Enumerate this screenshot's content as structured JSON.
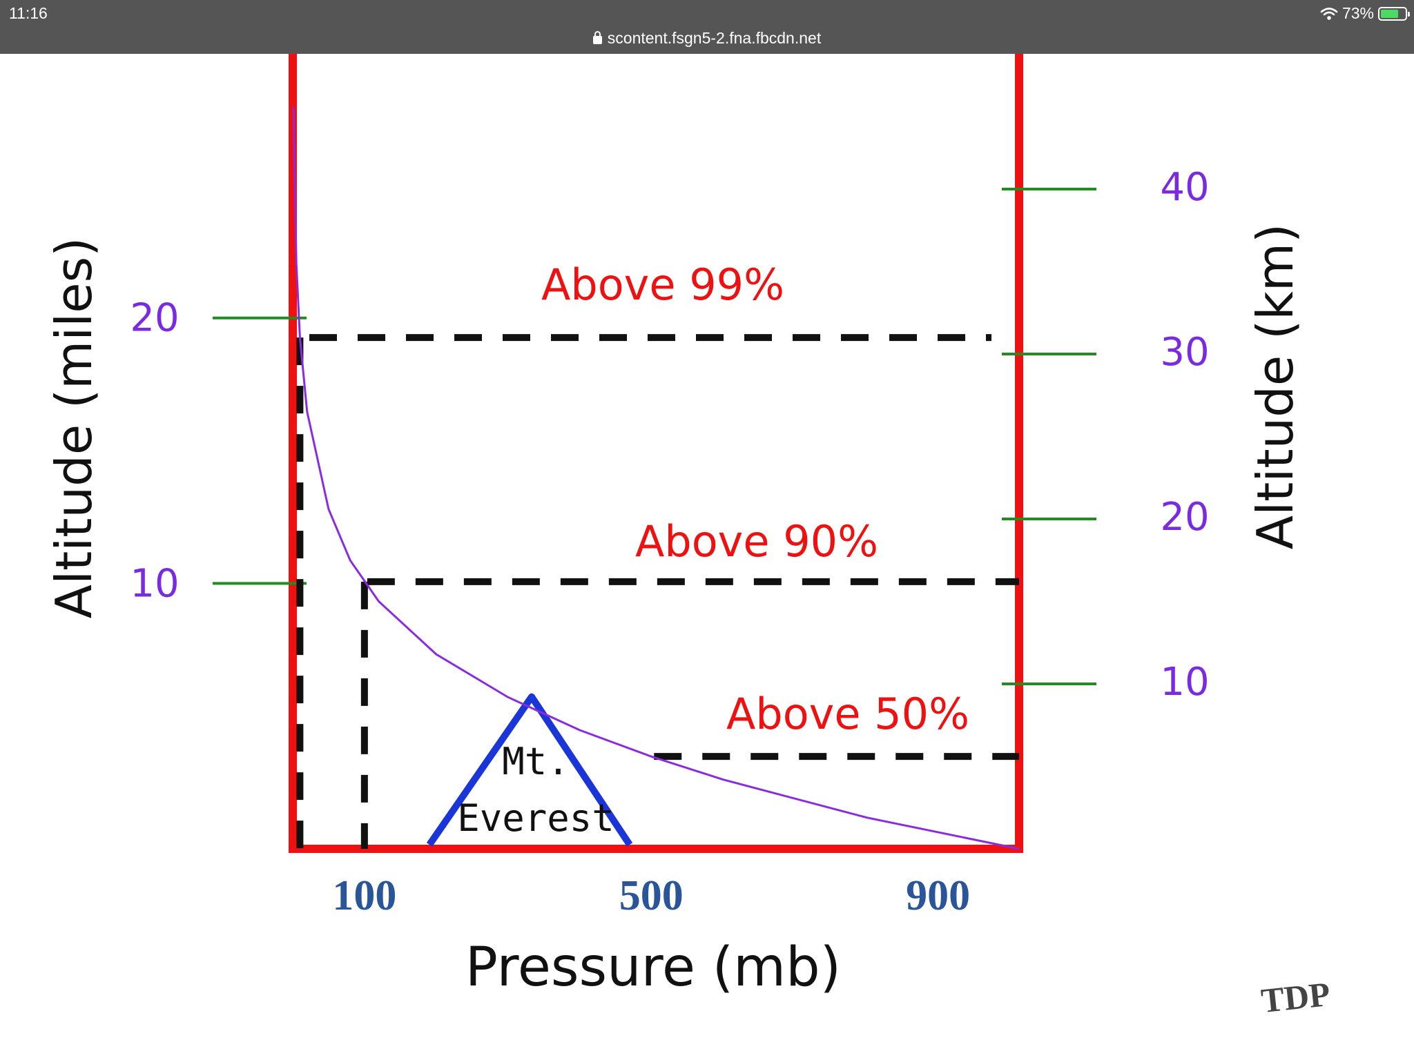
{
  "status_bar": {
    "time": "11:16",
    "url": "scontent.fsgn5-2.fna.fbcdn.net",
    "battery_text": "73%",
    "battery_level": 0.73,
    "icons": [
      "lock-icon",
      "wifi-icon",
      "battery-charging-icon"
    ]
  },
  "chart_data": {
    "type": "line",
    "title": "",
    "xlabel": "Pressure (mb)",
    "ylabel_left": "Altitude (miles)",
    "ylabel_right": "Altitude (km)",
    "x_ticks": [
      "100",
      "500",
      "900"
    ],
    "left_ticks": [
      "10",
      "20"
    ],
    "right_ticks": [
      "10",
      "20",
      "30",
      "40"
    ],
    "xlim": [
      0,
      1013
    ],
    "ylim_km": [
      0,
      48
    ],
    "grid": false,
    "series": [
      {
        "x": [
          1013,
          800,
          600,
          500,
          400,
          300,
          200,
          120,
          80,
          50,
          20,
          10,
          5,
          1
        ],
        "y": [
          0,
          1.9,
          4.2,
          5.6,
          7.2,
          9.2,
          11.8,
          15.0,
          17.5,
          20.6,
          26.5,
          31.0,
          35.5,
          45.0
        ]
      }
    ],
    "levels": [
      {
        "label": "Above 99%",
        "pressure": 10,
        "altitude_km": 31
      },
      {
        "label": "Above 90%",
        "pressure": 100,
        "altitude_km": 16.2
      },
      {
        "label": "Above 50%",
        "pressure": 500,
        "altitude_km": 5.6
      }
    ],
    "annotations": [
      {
        "text": "Mt.",
        "group": "Mt. Everest"
      },
      {
        "text": "Everest",
        "group": "Mt. Everest"
      }
    ],
    "everest": {
      "summit_altitude_km": 8.8
    },
    "colors": {
      "frame": "#ee1111",
      "curve": "#8a2be2",
      "tick_marks": "#228b22",
      "altitude_ticks": "#7a2be2",
      "pressure_ticks": "#2a5599",
      "level_labels": "#ee1111",
      "mountain": "#1a35d8",
      "dashes": "#111111"
    }
  },
  "watermark": {
    "text": "TDP"
  }
}
